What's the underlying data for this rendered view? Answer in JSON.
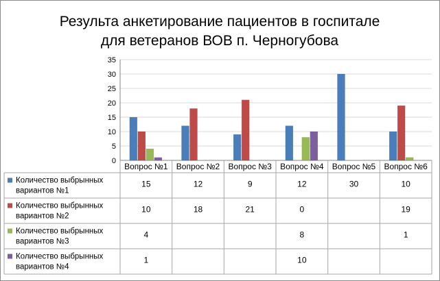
{
  "chart_data": {
    "type": "bar",
    "title_lines": [
      "Результа анкетирование пациентов в госпитале",
      "для ветеранов ВОВ п. Черногубова"
    ],
    "categories": [
      "Вопрос №1",
      "Вопрос №2",
      "Вопрос №3",
      "Вопрос №4",
      "Вопрос №5",
      "Вопрос №6"
    ],
    "ylim": [
      0,
      35
    ],
    "yticks": [
      0,
      5,
      10,
      15,
      20,
      25,
      30,
      35
    ],
    "grid": true,
    "legend": "data-table-left",
    "series": [
      {
        "name_lines": [
          "Количество выбрынных",
          "вариантов №1"
        ],
        "color": "#4a7ebb",
        "values": [
          15,
          12,
          9,
          12,
          30,
          10
        ],
        "labels": [
          "15",
          "12",
          "9",
          "12",
          "30",
          "10"
        ]
      },
      {
        "name_lines": [
          "Количество выбрынных",
          "вариантов №2"
        ],
        "color": "#be4b48",
        "values": [
          10,
          18,
          21,
          0,
          null,
          19
        ],
        "labels": [
          "10",
          "18",
          "21",
          "0",
          "",
          "19"
        ]
      },
      {
        "name_lines": [
          "Количество выбрынных",
          "вариантов №3"
        ],
        "color": "#98b954",
        "values": [
          4,
          null,
          null,
          8,
          null,
          1
        ],
        "labels": [
          "4",
          "",
          "",
          "8",
          "",
          "1"
        ]
      },
      {
        "name_lines": [
          "Количество выбрынных",
          "вариантов №4"
        ],
        "color": "#7d5fa0",
        "values": [
          1,
          null,
          null,
          10,
          null,
          null
        ],
        "labels": [
          "1",
          "",
          "",
          "10",
          "",
          ""
        ]
      }
    ]
  }
}
